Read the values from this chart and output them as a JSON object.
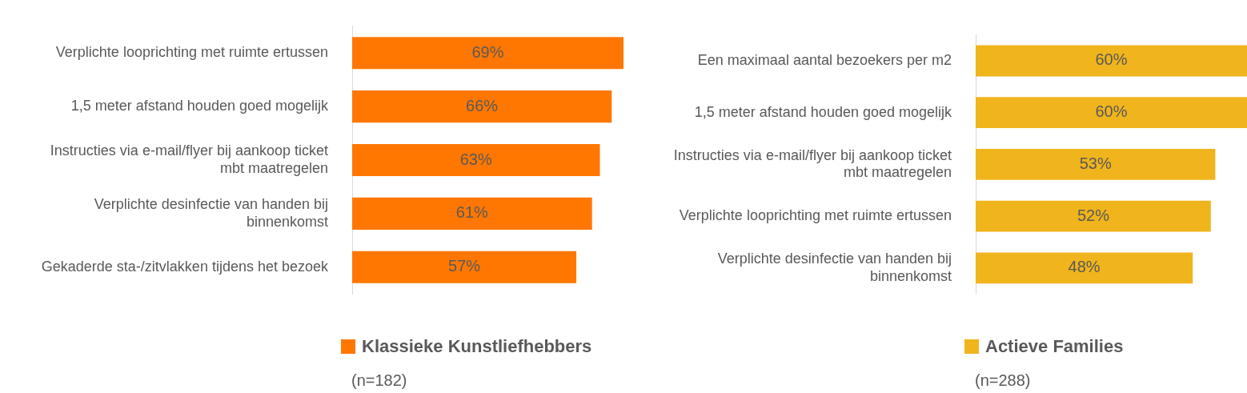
{
  "chart_data": [
    {
      "type": "bar",
      "orientation": "horizontal",
      "categories": [
        "Verplichte looprichting met ruimte ertussen",
        "1,5 meter afstand houden goed mogelijk",
        "Instructies via e-mail/flyer bij aankoop ticket mbt maatregelen",
        "Verplichte desinfectie van handen bij binnenkomst",
        "Gekaderde sta-/zitvlakken tijdens het bezoek"
      ],
      "series": [
        {
          "name": "Klassieke Kunstliefhebbers",
          "color": "#ff7700",
          "values": [
            69,
            66,
            63,
            61,
            57
          ],
          "value_labels": [
            "69%",
            "66%",
            "63%",
            "61%",
            "57%"
          ]
        }
      ],
      "legend": "bottom",
      "annotations": [
        "(n=182)"
      ]
    },
    {
      "type": "bar",
      "orientation": "horizontal",
      "categories": [
        "Een maximaal aantal bezoekers per m2",
        "1,5 meter afstand houden goed mogelijk",
        "Instructies via e-mail/flyer bij aankoop ticket mbt maatregelen",
        "Verplichte looprichting met ruimte ertussen",
        "Verplichte desinfectie van handen bij binnenkomst"
      ],
      "series": [
        {
          "name": "Actieve Families",
          "color": "#f0b41c",
          "values": [
            60,
            60,
            53,
            52,
            48
          ],
          "value_labels": [
            "60%",
            "60%",
            "53%",
            "52%",
            "48%"
          ]
        }
      ],
      "legend": "bottom",
      "annotations": [
        "(n=288)"
      ]
    }
  ]
}
